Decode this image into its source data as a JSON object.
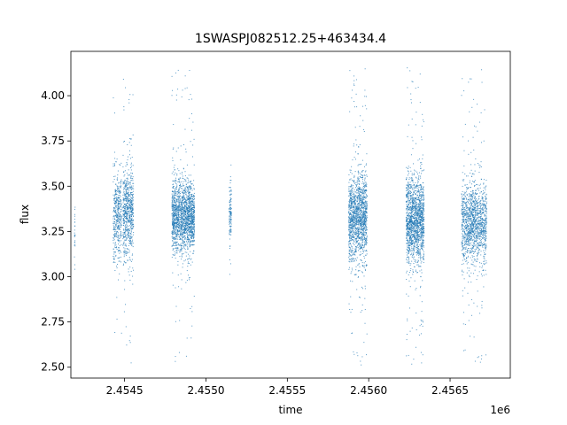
{
  "chart_data": {
    "type": "scatter",
    "title": "1SWASPJ082512.25+463434.4",
    "xlabel": "time",
    "ylabel": "flux",
    "x_offset_label": "1e6",
    "xlim": [
      2454170,
      2456870
    ],
    "ylim": [
      2.44,
      4.245
    ],
    "x_ticks": [
      2.4545,
      2.455,
      2.4555,
      2.456,
      2.4565
    ],
    "x_tick_labels": [
      "2.4545",
      "2.4550",
      "2.4555",
      "2.4560",
      "2.4565"
    ],
    "y_ticks": [
      2.5,
      2.75,
      3.0,
      3.25,
      3.5,
      3.75,
      4.0
    ],
    "y_tick_labels": [
      "2.50",
      "2.75",
      "3.00",
      "3.25",
      "3.50",
      "3.75",
      "4.00"
    ],
    "grid": false,
    "point_color": "#1f77b4",
    "clusters": [
      {
        "x_start": 2454192,
        "x_end": 2454196,
        "center": 3.25,
        "spread": 0.1,
        "min": 2.69,
        "max": 3.58,
        "count": 25
      },
      {
        "x_start": 2454430,
        "x_end": 2454482,
        "center": 3.33,
        "spread": 0.12,
        "min": 2.6,
        "max": 4.03,
        "count": 420
      },
      {
        "x_start": 2454490,
        "x_end": 2454555,
        "center": 3.35,
        "spread": 0.13,
        "min": 2.5,
        "max": 4.16,
        "count": 700
      },
      {
        "x_start": 2454790,
        "x_end": 2454930,
        "center": 3.33,
        "spread": 0.1,
        "min": 2.53,
        "max": 4.16,
        "count": 1800
      },
      {
        "x_start": 2455143,
        "x_end": 2455157,
        "center": 3.36,
        "spread": 0.07,
        "min": 2.87,
        "max": 3.66,
        "count": 120
      },
      {
        "x_start": 2455877,
        "x_end": 2455990,
        "center": 3.33,
        "spread": 0.12,
        "min": 2.51,
        "max": 4.17,
        "count": 1500
      },
      {
        "x_start": 2456230,
        "x_end": 2456340,
        "center": 3.32,
        "spread": 0.12,
        "min": 2.51,
        "max": 4.17,
        "count": 1600
      },
      {
        "x_start": 2456570,
        "x_end": 2456725,
        "center": 3.3,
        "spread": 0.11,
        "min": 2.52,
        "max": 4.15,
        "count": 1400
      }
    ]
  }
}
